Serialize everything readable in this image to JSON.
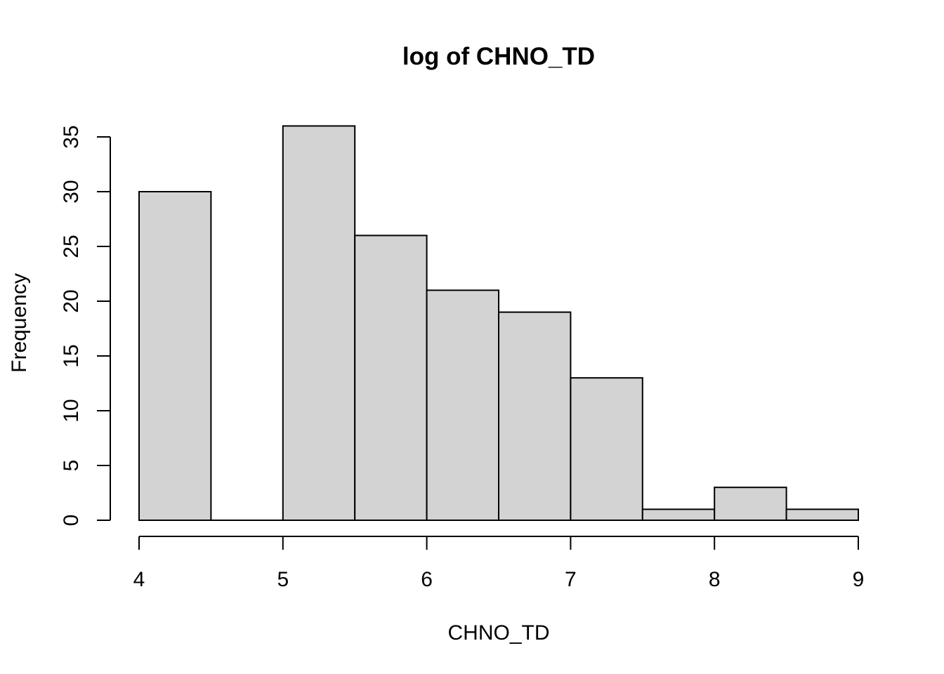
{
  "chart_data": {
    "type": "bar",
    "title": "log of CHNO_TD",
    "xlabel": "CHNO_TD",
    "ylabel": "Frequency",
    "bins": [
      {
        "x0": 4.0,
        "x1": 4.5,
        "count": 30
      },
      {
        "x0": 4.5,
        "x1": 5.0,
        "count": 0
      },
      {
        "x0": 5.0,
        "x1": 5.5,
        "count": 36
      },
      {
        "x0": 5.5,
        "x1": 6.0,
        "count": 26
      },
      {
        "x0": 6.0,
        "x1": 6.5,
        "count": 21
      },
      {
        "x0": 6.5,
        "x1": 7.0,
        "count": 19
      },
      {
        "x0": 7.0,
        "x1": 7.5,
        "count": 13
      },
      {
        "x0": 7.5,
        "x1": 8.0,
        "count": 1
      },
      {
        "x0": 8.0,
        "x1": 8.5,
        "count": 3
      },
      {
        "x0": 8.5,
        "x1": 9.0,
        "count": 1
      }
    ],
    "xlim": [
      4,
      9
    ],
    "ylim": [
      0,
      35
    ],
    "x_ticks": [
      4,
      5,
      6,
      7,
      8,
      9
    ],
    "y_ticks": [
      0,
      5,
      10,
      15,
      20,
      25,
      30,
      35
    ],
    "bar_color": "#d3d3d3",
    "grid": false,
    "legend": "none"
  }
}
